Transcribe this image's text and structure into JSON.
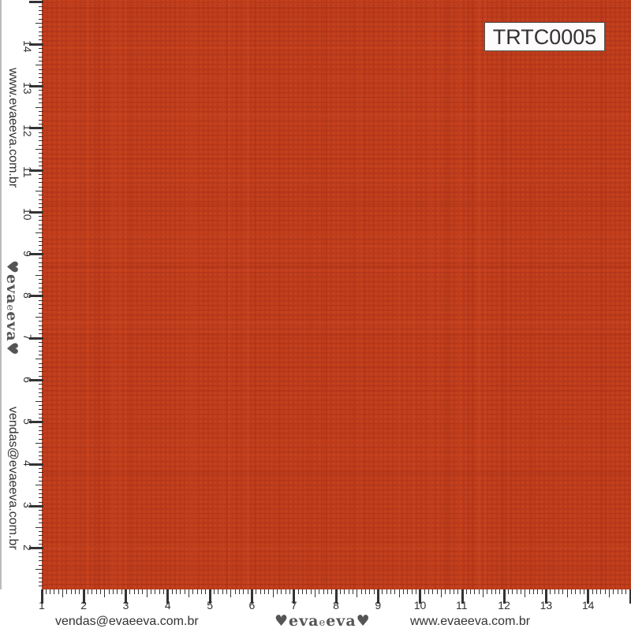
{
  "product_code": "TRTC0005",
  "fabric_colors": {
    "base": "#c23f1c",
    "weave_dark": "#a8321a",
    "weave_light": "#cf4a22"
  },
  "ruler_numbers": [
    "1",
    "2",
    "3",
    "4",
    "5",
    "6",
    "7",
    "8",
    "9",
    "10",
    "11",
    "12",
    "13",
    "14"
  ],
  "contact": {
    "email": "vendas@evaeeva.com.br",
    "website": "www.evaeeva.com.br"
  },
  "logo": {
    "text": "evaeeva",
    "part1": "eva",
    "part2": "e",
    "part3": "eva"
  }
}
